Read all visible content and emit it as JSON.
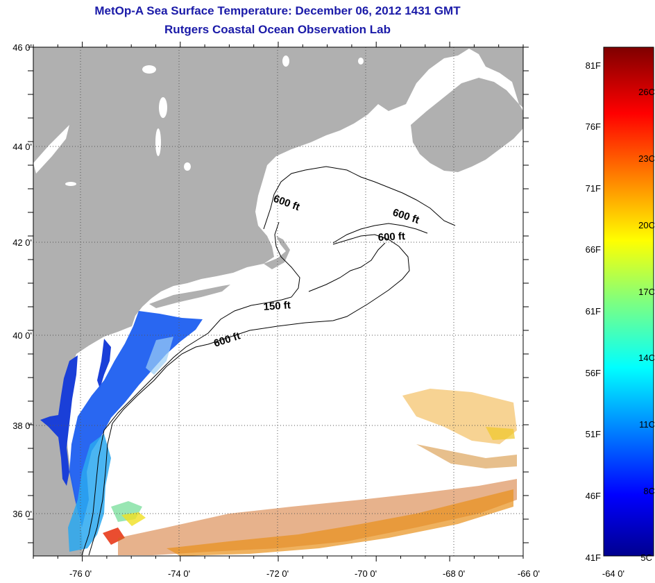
{
  "title": "MetOp-A Sea Surface Temperature:  December 06, 2012 1431 GMT",
  "subtitle": "Rutgers Coastal Ocean Observation Lab",
  "map": {
    "lon_ticks": [
      "-76 0'",
      "-74 0'",
      "-72 0'",
      "-70 0'",
      "-68 0'",
      "-66 0'",
      "-64 0'"
    ],
    "lat_ticks": [
      "46 0'",
      "44 0'",
      "42 0'",
      "40 0'",
      "38 0'",
      "36 0'"
    ],
    "land_color": "#b0b0b0",
    "ocean_color": "#ffffff",
    "contours": [
      {
        "label": "600 ft"
      },
      {
        "label": "600 ft"
      },
      {
        "label": "600 ft"
      },
      {
        "label": "150 ft"
      },
      {
        "label": "600 ft"
      }
    ]
  },
  "colorbar": {
    "fahrenheit_labels": [
      "81F",
      "76F",
      "71F",
      "66F",
      "61F",
      "56F",
      "51F",
      "46F",
      "41F"
    ],
    "celsius_labels": [
      "26C",
      "23C",
      "20C",
      "17C",
      "14C",
      "11C",
      "8C",
      "5C"
    ]
  }
}
